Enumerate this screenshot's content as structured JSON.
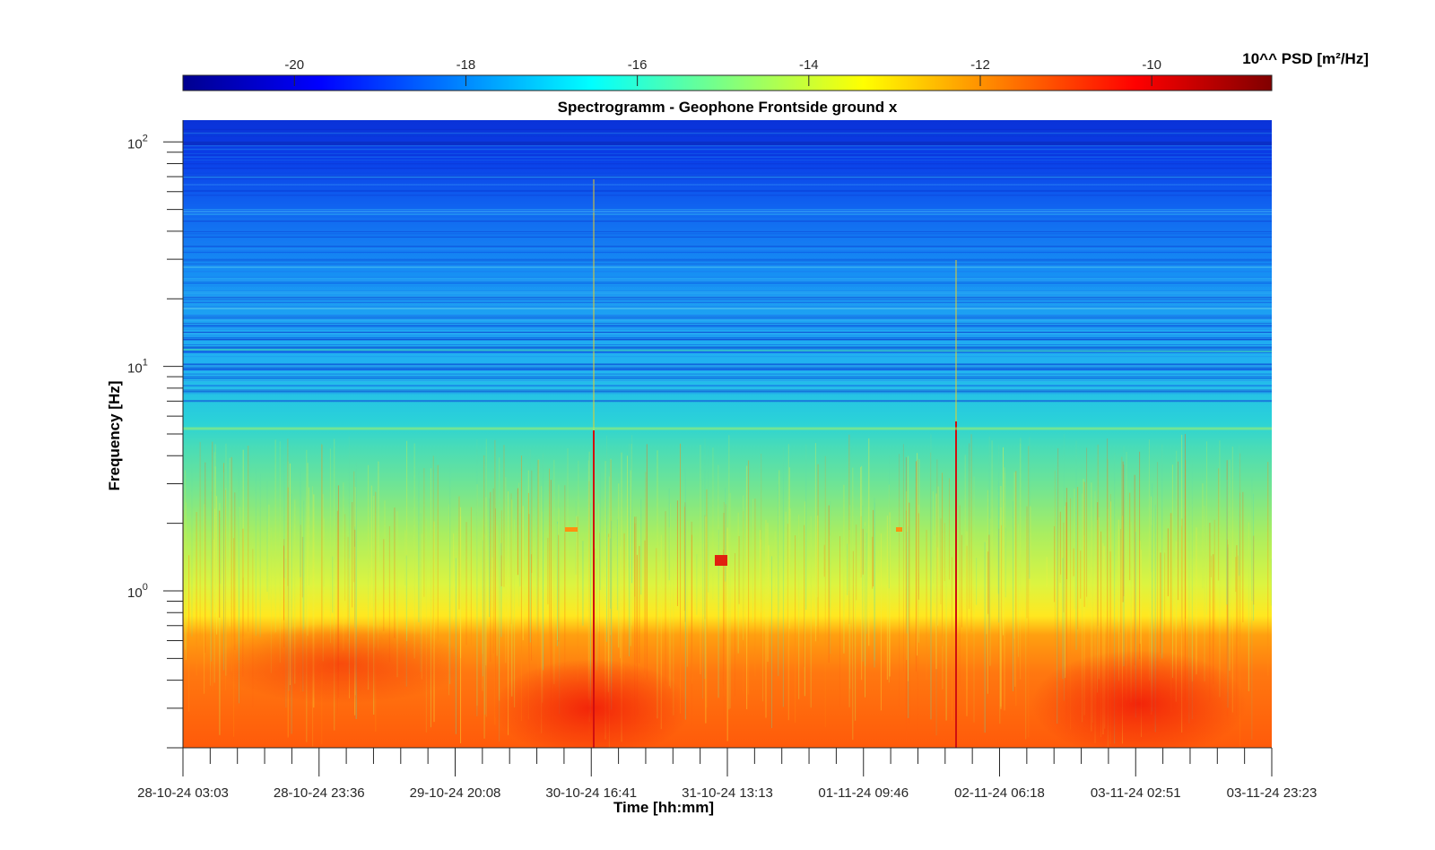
{
  "chart_data": {
    "type": "heatmap",
    "title": "Spectrogramm - Geophone Frontside ground x",
    "xlabel": "Time [hh:mm]",
    "ylabel": "Frequency [Hz]",
    "y_scale": "log",
    "ylim": [
      0.2,
      125
    ],
    "x_tick_labels": [
      "28-10-24 03:03",
      "28-10-24 23:36",
      "29-10-24 20:08",
      "30-10-24 16:41",
      "31-10-24 13:13",
      "01-11-24 09:46",
      "02-11-24 06:18",
      "03-11-24 02:51",
      "03-11-24 23:23"
    ],
    "y_tick_values": [
      1,
      10,
      100
    ],
    "y_tick_labels": [
      {
        "base": "10",
        "exp": "0"
      },
      {
        "base": "10",
        "exp": "1"
      },
      {
        "base": "10",
        "exp": "2"
      }
    ],
    "colorbar": {
      "label": "10^^ PSD [m²/Hz]",
      "range": [
        -21.3,
        -8.6
      ],
      "ticks": [
        -20,
        -18,
        -16,
        -14,
        -12,
        -10
      ],
      "tick_labels": [
        "-20",
        "-18",
        "-16",
        "-14",
        "-12",
        "-10"
      ],
      "colormap": "jet"
    },
    "colormap_stops": [
      "#00008f",
      "#0000ff",
      "#00ffff",
      "#ffff00",
      "#ff0000",
      "#800000"
    ],
    "grid": false
  }
}
